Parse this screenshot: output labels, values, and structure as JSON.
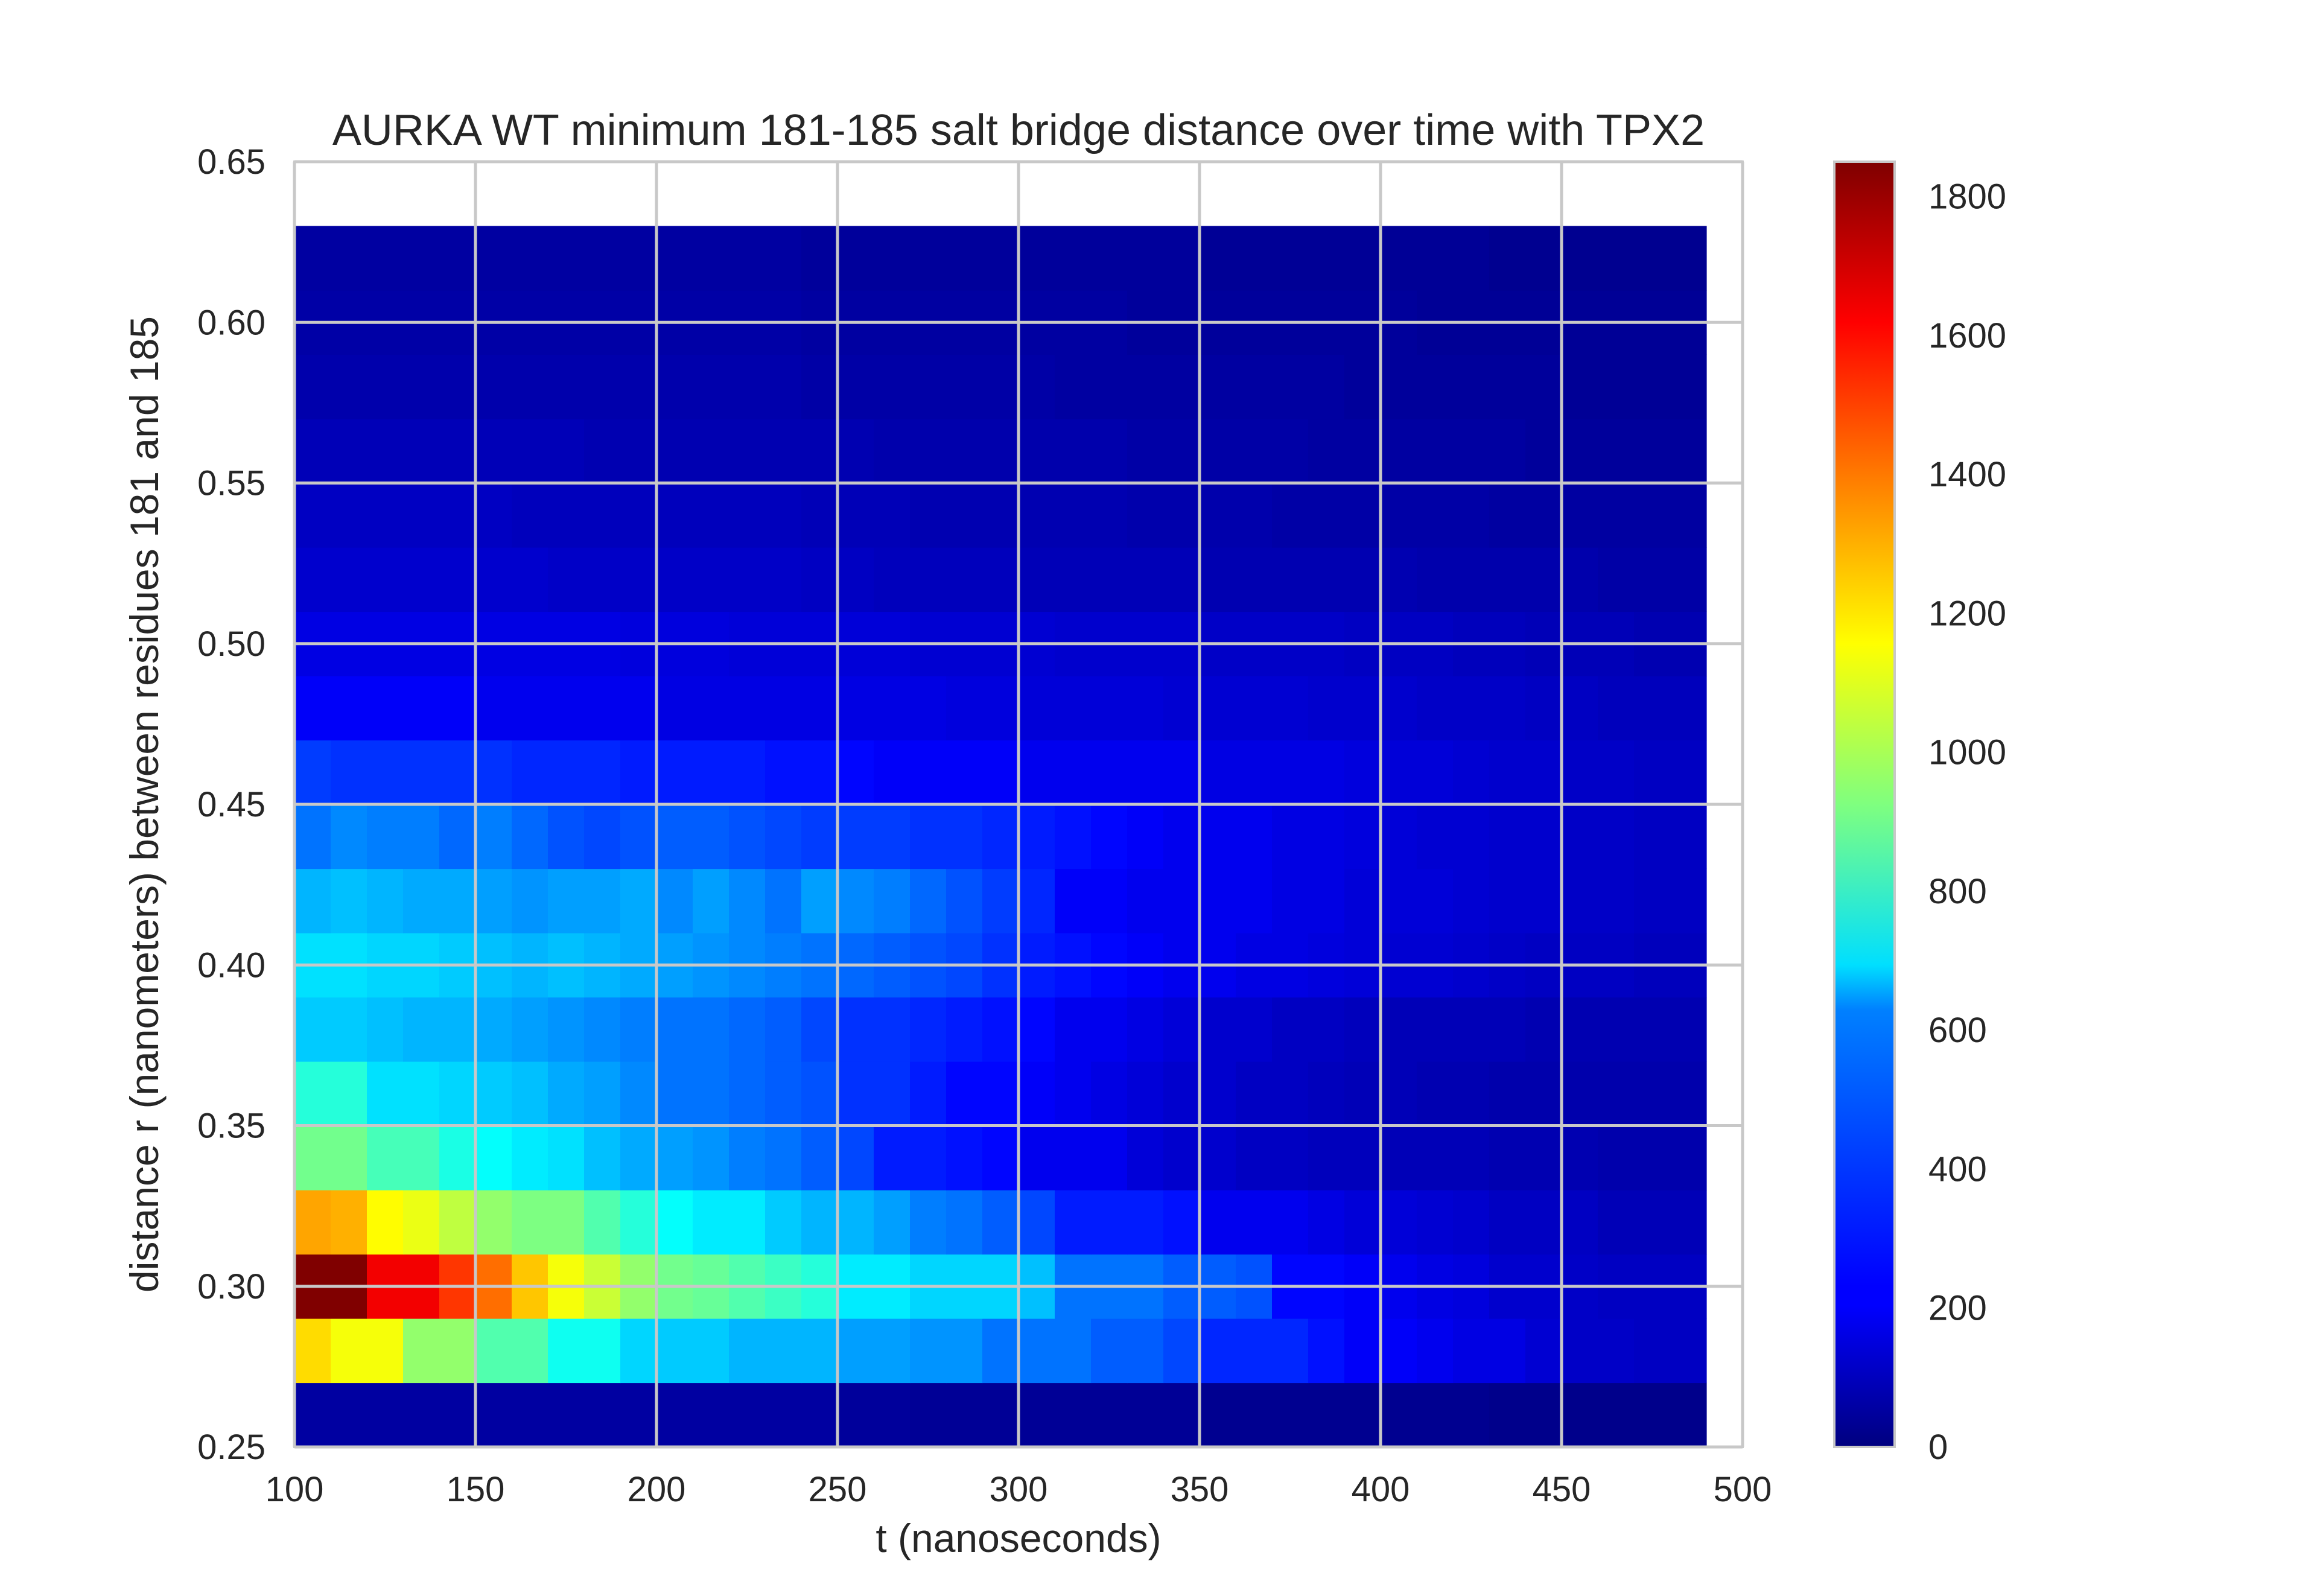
{
  "chart_data": {
    "type": "heatmap",
    "title": "AURKA WT minimum 181-185 salt bridge distance over time with TPX2",
    "xlabel": "t (nanoseconds)",
    "ylabel": "distance r (nanometers) between residues 181 and 185",
    "xlim": [
      100,
      500
    ],
    "ylim": [
      0.25,
      0.65
    ],
    "xticks": [
      "100",
      "150",
      "200",
      "250",
      "300",
      "350",
      "400",
      "450",
      "500"
    ],
    "yticks": [
      "0.25",
      "0.30",
      "0.35",
      "0.40",
      "0.45",
      "0.50",
      "0.55",
      "0.60",
      "0.65"
    ],
    "x_bin_edges": [
      100,
      490
    ],
    "y_bin_edges": [
      0.25,
      0.27,
      0.29,
      0.31,
      0.33,
      0.35,
      0.37,
      0.39,
      0.41,
      0.43,
      0.45,
      0.47,
      0.49,
      0.51,
      0.53,
      0.55,
      0.57,
      0.59,
      0.61,
      0.63
    ],
    "x_bins": 39,
    "colormap": "jet",
    "colorbar": {
      "min": 0,
      "max": 1850,
      "ticks": [
        "0",
        "200",
        "400",
        "600",
        "800",
        "1000",
        "1200",
        "1400",
        "1600",
        "1800"
      ]
    },
    "grid": true,
    "counts": [
      [
        60,
        60,
        60,
        60,
        60,
        60,
        60,
        60,
        60,
        60,
        60,
        60,
        60,
        60,
        60,
        50,
        50,
        40,
        40,
        40,
        40,
        40,
        40,
        40,
        40,
        30,
        30,
        30,
        30,
        30,
        30,
        30,
        30,
        20,
        20,
        20,
        20,
        20,
        20
      ],
      [
        1220,
        1140,
        1140,
        960,
        960,
        840,
        840,
        720,
        720,
        620,
        600,
        600,
        560,
        560,
        560,
        520,
        520,
        500,
        500,
        440,
        440,
        440,
        400,
        400,
        360,
        300,
        300,
        300,
        260,
        220,
        220,
        200,
        180,
        180,
        150,
        130,
        130,
        120,
        120
      ],
      [
        1850,
        1850,
        1640,
        1640,
        1520,
        1420,
        1260,
        1140,
        1060,
        960,
        900,
        880,
        840,
        800,
        760,
        660,
        660,
        620,
        620,
        620,
        580,
        440,
        440,
        440,
        400,
        400,
        380,
        240,
        240,
        220,
        200,
        180,
        170,
        140,
        140,
        130,
        120,
        120,
        120
      ],
      [
        1320,
        1300,
        1160,
        1120,
        1040,
        960,
        920,
        920,
        840,
        760,
        700,
        660,
        660,
        600,
        560,
        560,
        520,
        460,
        440,
        400,
        360,
        280,
        280,
        280,
        260,
        200,
        200,
        200,
        180,
        160,
        160,
        150,
        140,
        120,
        120,
        120,
        100,
        100,
        100
      ],
      [
        900,
        900,
        820,
        820,
        740,
        700,
        660,
        640,
        580,
        540,
        520,
        500,
        460,
        440,
        400,
        360,
        280,
        280,
        260,
        240,
        200,
        200,
        200,
        160,
        140,
        140,
        120,
        120,
        110,
        110,
        100,
        100,
        100,
        90,
        90,
        90,
        80,
        80,
        80
      ],
      [
        760,
        760,
        640,
        640,
        620,
        600,
        580,
        540,
        520,
        480,
        440,
        440,
        420,
        400,
        380,
        320,
        320,
        280,
        240,
        240,
        220,
        200,
        180,
        160,
        140,
        140,
        120,
        120,
        110,
        100,
        100,
        90,
        90,
        80,
        80,
        80,
        80,
        80,
        80
      ],
      [
        600,
        600,
        580,
        560,
        560,
        540,
        520,
        500,
        480,
        460,
        440,
        440,
        420,
        400,
        360,
        320,
        320,
        300,
        280,
        260,
        240,
        200,
        200,
        180,
        160,
        140,
        140,
        120,
        120,
        110,
        100,
        100,
        100,
        100,
        90,
        90,
        90,
        90,
        90
      ],
      [
        640,
        640,
        620,
        620,
        600,
        580,
        560,
        580,
        560,
        540,
        520,
        500,
        480,
        460,
        440,
        420,
        400,
        380,
        360,
        320,
        280,
        260,
        240,
        220,
        200,
        200,
        180,
        180,
        170,
        160,
        150,
        150,
        140,
        130,
        120,
        120,
        120,
        110,
        110
      ],
      [
        560,
        580,
        560,
        540,
        540,
        520,
        500,
        520,
        520,
        540,
        480,
        520,
        480,
        440,
        520,
        480,
        460,
        420,
        380,
        340,
        300,
        220,
        220,
        200,
        200,
        200,
        200,
        180,
        180,
        160,
        160,
        160,
        150,
        140,
        140,
        130,
        130,
        120,
        120
      ],
      [
        440,
        480,
        460,
        460,
        420,
        460,
        420,
        380,
        360,
        380,
        400,
        400,
        380,
        360,
        340,
        340,
        340,
        320,
        320,
        300,
        280,
        260,
        240,
        220,
        200,
        200,
        200,
        180,
        180,
        170,
        160,
        150,
        150,
        140,
        140,
        130,
        130,
        120,
        120
      ],
      [
        340,
        320,
        320,
        320,
        320,
        320,
        300,
        300,
        300,
        280,
        280,
        280,
        280,
        260,
        260,
        240,
        220,
        220,
        220,
        220,
        200,
        200,
        200,
        200,
        200,
        180,
        180,
        180,
        180,
        170,
        160,
        160,
        150,
        140,
        140,
        130,
        130,
        120,
        120
      ],
      [
        220,
        220,
        220,
        220,
        220,
        200,
        200,
        200,
        200,
        200,
        180,
        180,
        180,
        180,
        180,
        180,
        180,
        180,
        170,
        170,
        160,
        160,
        160,
        160,
        150,
        150,
        150,
        150,
        140,
        140,
        140,
        130,
        130,
        130,
        120,
        120,
        110,
        110,
        110
      ],
      [
        180,
        180,
        180,
        180,
        180,
        180,
        180,
        180,
        180,
        170,
        170,
        170,
        160,
        160,
        160,
        160,
        160,
        150,
        150,
        150,
        150,
        140,
        140,
        140,
        140,
        130,
        130,
        130,
        130,
        120,
        120,
        120,
        110,
        110,
        100,
        100,
        100,
        90,
        90
      ],
      [
        140,
        140,
        140,
        140,
        140,
        140,
        140,
        130,
        130,
        130,
        130,
        130,
        130,
        130,
        120,
        120,
        110,
        110,
        110,
        110,
        100,
        100,
        100,
        100,
        100,
        90,
        90,
        90,
        90,
        90,
        90,
        80,
        80,
        80,
        80,
        80,
        70,
        70,
        70
      ],
      [
        120,
        120,
        120,
        120,
        120,
        120,
        110,
        110,
        110,
        110,
        110,
        110,
        110,
        110,
        100,
        100,
        100,
        90,
        90,
        90,
        90,
        90,
        90,
        80,
        80,
        80,
        80,
        70,
        70,
        70,
        70,
        70,
        70,
        60,
        60,
        60,
        60,
        60,
        60
      ],
      [
        100,
        100,
        100,
        100,
        100,
        100,
        100,
        100,
        90,
        90,
        90,
        90,
        90,
        90,
        90,
        90,
        80,
        80,
        80,
        80,
        80,
        80,
        80,
        70,
        70,
        70,
        70,
        70,
        60,
        60,
        60,
        60,
        60,
        60,
        50,
        50,
        50,
        50,
        50
      ],
      [
        80,
        80,
        80,
        80,
        80,
        80,
        80,
        80,
        80,
        80,
        80,
        80,
        80,
        80,
        70,
        70,
        70,
        70,
        70,
        70,
        70,
        60,
        60,
        60,
        60,
        60,
        60,
        60,
        60,
        50,
        50,
        50,
        50,
        50,
        50,
        40,
        40,
        40,
        40
      ],
      [
        70,
        70,
        70,
        70,
        70,
        70,
        70,
        70,
        70,
        70,
        70,
        70,
        70,
        70,
        60,
        60,
        60,
        60,
        60,
        60,
        60,
        60,
        60,
        50,
        50,
        50,
        50,
        50,
        50,
        50,
        50,
        40,
        40,
        40,
        40,
        40,
        40,
        40,
        40
      ],
      [
        60,
        60,
        60,
        60,
        60,
        60,
        60,
        60,
        60,
        60,
        60,
        60,
        60,
        60,
        50,
        50,
        50,
        50,
        50,
        50,
        50,
        50,
        50,
        50,
        50,
        40,
        40,
        40,
        40,
        40,
        40,
        40,
        40,
        30,
        30,
        30,
        30,
        30,
        30
      ]
    ]
  }
}
